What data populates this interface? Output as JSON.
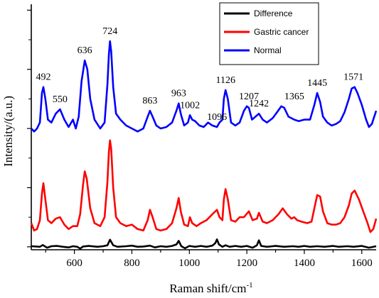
{
  "chart_data": {
    "type": "line",
    "xlabel": "Raman shift/cm",
    "xlabel_sup": "-1",
    "ylabel": "Intensity/(a.u.)",
    "xlim": [
      450,
      1650
    ],
    "xticks": [
      600,
      800,
      1000,
      1200,
      1400,
      1600
    ],
    "ylim": [
      -0.1,
      8.2
    ],
    "y_tick_labels_shown": false,
    "grid": false,
    "legend_position": "top-right",
    "series": [
      {
        "name": "Difference",
        "color": "#000000",
        "points": [
          [
            450,
            0.02
          ],
          [
            480,
            0.0
          ],
          [
            490,
            0.06
          ],
          [
            505,
            -0.03
          ],
          [
            520,
            0.02
          ],
          [
            540,
            0.03
          ],
          [
            560,
            0.0
          ],
          [
            580,
            -0.02
          ],
          [
            595,
            0.02
          ],
          [
            610,
            0.0
          ],
          [
            620,
            -0.06
          ],
          [
            630,
            0.01
          ],
          [
            650,
            0.03
          ],
          [
            680,
            0.0
          ],
          [
            700,
            0.02
          ],
          [
            715,
            0.05
          ],
          [
            724,
            0.24
          ],
          [
            735,
            0.05
          ],
          [
            750,
            0.0
          ],
          [
            780,
            0.02
          ],
          [
            800,
            0.04
          ],
          [
            820,
            0.0
          ],
          [
            840,
            0.01
          ],
          [
            863,
            0.04
          ],
          [
            880,
            -0.02
          ],
          [
            900,
            0.02
          ],
          [
            920,
            0.0
          ],
          [
            940,
            0.03
          ],
          [
            955,
            0.08
          ],
          [
            963,
            0.2
          ],
          [
            972,
            0.02
          ],
          [
            985,
            -0.05
          ],
          [
            1000,
            0.03
          ],
          [
            1020,
            0.0
          ],
          [
            1040,
            0.03
          ],
          [
            1060,
            0.0
          ],
          [
            1080,
            0.04
          ],
          [
            1090,
            0.12
          ],
          [
            1096,
            0.25
          ],
          [
            1103,
            0.08
          ],
          [
            1115,
            0.0
          ],
          [
            1126,
            0.05
          ],
          [
            1140,
            0.0
          ],
          [
            1160,
            0.03
          ],
          [
            1180,
            0.0
          ],
          [
            1200,
            0.03
          ],
          [
            1220,
            -0.03
          ],
          [
            1235,
            0.05
          ],
          [
            1242,
            0.22
          ],
          [
            1250,
            0.03
          ],
          [
            1270,
            0.0
          ],
          [
            1300,
            0.03
          ],
          [
            1330,
            0.0
          ],
          [
            1360,
            0.02
          ],
          [
            1380,
            0.0
          ],
          [
            1400,
            0.03
          ],
          [
            1420,
            0.0
          ],
          [
            1445,
            0.02
          ],
          [
            1470,
            0.0
          ],
          [
            1500,
            0.03
          ],
          [
            1520,
            0.0
          ],
          [
            1550,
            0.02
          ],
          [
            1571,
            0.0
          ],
          [
            1600,
            0.03
          ],
          [
            1625,
            -0.03
          ],
          [
            1650,
            0.02
          ]
        ]
      },
      {
        "name": "Gastric cancer",
        "color": "#ff0000",
        "points": [
          [
            450,
            0.8
          ],
          [
            460,
            0.55
          ],
          [
            470,
            0.6
          ],
          [
            480,
            0.9
          ],
          [
            487,
            1.8
          ],
          [
            492,
            2.15
          ],
          [
            499,
            1.6
          ],
          [
            508,
            0.9
          ],
          [
            520,
            0.8
          ],
          [
            535,
            0.95
          ],
          [
            550,
            1.0
          ],
          [
            565,
            0.75
          ],
          [
            580,
            0.6
          ],
          [
            595,
            0.7
          ],
          [
            610,
            0.7
          ],
          [
            620,
            1.1
          ],
          [
            630,
            2.1
          ],
          [
            636,
            2.55
          ],
          [
            643,
            2.3
          ],
          [
            655,
            1.3
          ],
          [
            670,
            0.8
          ],
          [
            690,
            0.7
          ],
          [
            705,
            1.0
          ],
          [
            715,
            2.2
          ],
          [
            720,
            3.2
          ],
          [
            724,
            3.6
          ],
          [
            728,
            3.3
          ],
          [
            735,
            2.0
          ],
          [
            745,
            1.0
          ],
          [
            760,
            0.8
          ],
          [
            780,
            0.7
          ],
          [
            800,
            0.75
          ],
          [
            820,
            0.6
          ],
          [
            840,
            0.55
          ],
          [
            855,
            0.9
          ],
          [
            863,
            1.25
          ],
          [
            872,
            1.0
          ],
          [
            885,
            0.6
          ],
          [
            900,
            0.55
          ],
          [
            920,
            0.6
          ],
          [
            940,
            0.8
          ],
          [
            955,
            1.3
          ],
          [
            963,
            1.65
          ],
          [
            970,
            1.2
          ],
          [
            982,
            0.75
          ],
          [
            995,
            0.7
          ],
          [
            1002,
            1.0
          ],
          [
            1010,
            0.8
          ],
          [
            1025,
            0.7
          ],
          [
            1040,
            0.8
          ],
          [
            1060,
            0.9
          ],
          [
            1080,
            1.1
          ],
          [
            1096,
            1.25
          ],
          [
            1105,
            1.0
          ],
          [
            1115,
            0.9
          ],
          [
            1120,
            1.6
          ],
          [
            1126,
            1.95
          ],
          [
            1134,
            1.6
          ],
          [
            1145,
            0.9
          ],
          [
            1160,
            0.85
          ],
          [
            1175,
            1.0
          ],
          [
            1190,
            1.0
          ],
          [
            1207,
            1.2
          ],
          [
            1220,
            0.9
          ],
          [
            1235,
            0.95
          ],
          [
            1242,
            1.15
          ],
          [
            1255,
            0.85
          ],
          [
            1270,
            0.8
          ],
          [
            1290,
            0.9
          ],
          [
            1310,
            1.1
          ],
          [
            1325,
            1.3
          ],
          [
            1340,
            1.1
          ],
          [
            1355,
            0.95
          ],
          [
            1365,
            1.0
          ],
          [
            1375,
            0.9
          ],
          [
            1390,
            0.85
          ],
          [
            1410,
            0.8
          ],
          [
            1425,
            0.85
          ],
          [
            1435,
            1.3
          ],
          [
            1445,
            1.75
          ],
          [
            1455,
            1.7
          ],
          [
            1465,
            1.2
          ],
          [
            1480,
            0.8
          ],
          [
            1495,
            0.75
          ],
          [
            1510,
            0.75
          ],
          [
            1525,
            0.8
          ],
          [
            1540,
            1.0
          ],
          [
            1555,
            1.4
          ],
          [
            1565,
            1.8
          ],
          [
            1575,
            1.9
          ],
          [
            1590,
            1.6
          ],
          [
            1605,
            1.2
          ],
          [
            1620,
            0.8
          ],
          [
            1630,
            0.5
          ],
          [
            1640,
            0.6
          ],
          [
            1650,
            0.95
          ]
        ]
      },
      {
        "name": "Normal",
        "color": "#0000ff",
        "points": [
          [
            450,
            4.0
          ],
          [
            460,
            3.9
          ],
          [
            470,
            4.0
          ],
          [
            480,
            4.2
          ],
          [
            487,
            5.2
          ],
          [
            492,
            5.4
          ],
          [
            499,
            5.0
          ],
          [
            508,
            4.3
          ],
          [
            520,
            4.2
          ],
          [
            535,
            4.5
          ],
          [
            550,
            4.65
          ],
          [
            565,
            4.3
          ],
          [
            580,
            4.05
          ],
          [
            595,
            4.3
          ],
          [
            605,
            4.0
          ],
          [
            615,
            4.4
          ],
          [
            625,
            5.6
          ],
          [
            636,
            6.3
          ],
          [
            645,
            6.0
          ],
          [
            655,
            5.0
          ],
          [
            670,
            4.3
          ],
          [
            690,
            4.0
          ],
          [
            705,
            4.2
          ],
          [
            715,
            5.5
          ],
          [
            720,
            6.5
          ],
          [
            724,
            6.95
          ],
          [
            728,
            6.6
          ],
          [
            735,
            5.4
          ],
          [
            745,
            4.5
          ],
          [
            760,
            4.3
          ],
          [
            780,
            4.1
          ],
          [
            800,
            4.0
          ],
          [
            820,
            3.9
          ],
          [
            840,
            4.0
          ],
          [
            855,
            4.4
          ],
          [
            863,
            4.6
          ],
          [
            872,
            4.4
          ],
          [
            885,
            4.1
          ],
          [
            900,
            4.0
          ],
          [
            920,
            4.05
          ],
          [
            940,
            4.2
          ],
          [
            955,
            4.6
          ],
          [
            963,
            4.85
          ],
          [
            970,
            4.5
          ],
          [
            982,
            4.1
          ],
          [
            995,
            4.2
          ],
          [
            1002,
            4.45
          ],
          [
            1010,
            4.3
          ],
          [
            1020,
            4.25
          ],
          [
            1035,
            4.1
          ],
          [
            1050,
            4.05
          ],
          [
            1065,
            4.2
          ],
          [
            1080,
            4.1
          ],
          [
            1096,
            4.05
          ],
          [
            1105,
            4.2
          ],
          [
            1115,
            4.3
          ],
          [
            1120,
            5.0
          ],
          [
            1126,
            5.3
          ],
          [
            1134,
            5.0
          ],
          [
            1145,
            4.2
          ],
          [
            1160,
            4.1
          ],
          [
            1175,
            4.2
          ],
          [
            1190,
            4.6
          ],
          [
            1200,
            4.75
          ],
          [
            1207,
            4.7
          ],
          [
            1218,
            4.3
          ],
          [
            1230,
            4.4
          ],
          [
            1242,
            4.5
          ],
          [
            1255,
            4.3
          ],
          [
            1270,
            4.2
          ],
          [
            1290,
            4.35
          ],
          [
            1305,
            4.55
          ],
          [
            1320,
            4.75
          ],
          [
            1330,
            4.7
          ],
          [
            1345,
            4.4
          ],
          [
            1365,
            4.3
          ],
          [
            1380,
            4.25
          ],
          [
            1400,
            4.3
          ],
          [
            1420,
            4.3
          ],
          [
            1435,
            4.8
          ],
          [
            1445,
            5.2
          ],
          [
            1455,
            4.9
          ],
          [
            1465,
            4.4
          ],
          [
            1480,
            4.2
          ],
          [
            1495,
            4.1
          ],
          [
            1510,
            4.15
          ],
          [
            1525,
            4.25
          ],
          [
            1540,
            4.55
          ],
          [
            1555,
            5.0
          ],
          [
            1565,
            5.35
          ],
          [
            1575,
            5.4
          ],
          [
            1585,
            5.2
          ],
          [
            1600,
            4.8
          ],
          [
            1615,
            4.3
          ],
          [
            1625,
            4.05
          ],
          [
            1635,
            4.15
          ],
          [
            1645,
            4.45
          ],
          [
            1650,
            4.6
          ]
        ]
      }
    ],
    "peak_labels": [
      {
        "text": "492",
        "x": 492,
        "y": 5.4
      },
      {
        "text": "550",
        "x": 550,
        "y": 4.65
      },
      {
        "text": "636",
        "x": 636,
        "y": 6.3
      },
      {
        "text": "724",
        "x": 724,
        "y": 6.95
      },
      {
        "text": "863",
        "x": 863,
        "y": 4.6
      },
      {
        "text": "963",
        "x": 963,
        "y": 4.85
      },
      {
        "text": "1002",
        "x": 1002,
        "y": 4.45
      },
      {
        "text": "1096",
        "x": 1096,
        "y": 4.05
      },
      {
        "text": "1126",
        "x": 1126,
        "y": 5.3
      },
      {
        "text": "1207",
        "x": 1207,
        "y": 4.75
      },
      {
        "text": "1242",
        "x": 1242,
        "y": 4.5
      },
      {
        "text": "1365",
        "x": 1365,
        "y": 4.75
      },
      {
        "text": "1445",
        "x": 1445,
        "y": 5.2
      },
      {
        "text": "1571",
        "x": 1571,
        "y": 5.4
      }
    ]
  }
}
